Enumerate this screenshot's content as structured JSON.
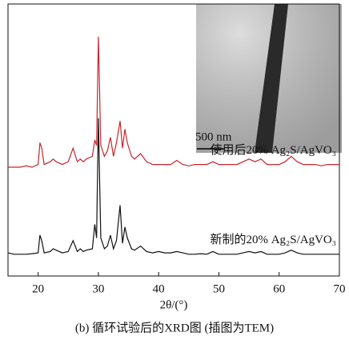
{
  "chart_data": {
    "type": "line",
    "x_label": "2θ/(°)",
    "caption": "(b) 循环试验后的XRD图 (插图为TEM)",
    "inset_scale_label": "500 nm",
    "xlim": [
      15,
      70
    ],
    "xticks": [
      20,
      30,
      40,
      50,
      60,
      70
    ],
    "ylim": [
      0,
      100
    ],
    "x": [
      15,
      16,
      17,
      18,
      19,
      20,
      20.3,
      20.6,
      21,
      22,
      22.5,
      23,
      24,
      25,
      25.8,
      26.5,
      27,
      27.5,
      28,
      29,
      29.4,
      29.7,
      30,
      30.4,
      31,
      31.5,
      32,
      32.5,
      33,
      33.6,
      34,
      34.4,
      34.8,
      35.5,
      36,
      37,
      38,
      39,
      40,
      41,
      42,
      43,
      44,
      45,
      46,
      47,
      48,
      49,
      50,
      51,
      52,
      53,
      54,
      55,
      56,
      57,
      58,
      59,
      60,
      61,
      62,
      63,
      64,
      65,
      66,
      67,
      68,
      69,
      70
    ],
    "series": [
      {
        "name": "使用后20% Ag₂S/AgVO₃",
        "color": "#c8262e",
        "values": [
          40,
          40,
          40,
          40.5,
          40,
          41,
          49,
          47,
          41,
          42,
          43,
          42,
          41,
          42,
          47,
          42,
          43,
          42,
          43,
          44,
          50,
          48,
          88,
          48,
          44,
          46,
          51,
          44,
          49,
          57,
          47,
          54,
          49,
          44,
          43,
          45,
          42,
          41,
          41,
          41,
          41,
          42.5,
          41,
          40.5,
          41,
          41,
          41,
          42,
          41,
          41,
          41,
          41,
          42,
          43,
          42,
          43,
          41,
          41,
          41,
          42,
          44,
          42,
          41,
          41,
          41,
          40.5,
          41,
          41,
          41
        ]
      },
      {
        "name": "新制的20% Ag₂S/AgVO₃",
        "color": "#111111",
        "values": [
          8.5,
          8,
          8,
          8,
          8.2,
          8.5,
          15,
          13,
          8.5,
          9,
          10,
          9.5,
          8.5,
          9,
          13,
          9,
          10,
          9,
          9.5,
          10,
          19,
          14,
          58,
          14,
          10,
          11,
          15,
          10,
          13,
          26,
          12,
          18,
          14,
          10,
          9.5,
          11,
          9,
          8.5,
          9,
          8.5,
          8.5,
          9,
          8.5,
          8,
          8,
          8.2,
          8,
          9,
          8,
          8,
          8,
          8,
          8.5,
          9,
          8.5,
          9,
          8,
          8,
          8,
          8.5,
          9.5,
          8.5,
          8,
          8,
          8,
          8,
          8,
          8,
          8
        ]
      }
    ]
  }
}
